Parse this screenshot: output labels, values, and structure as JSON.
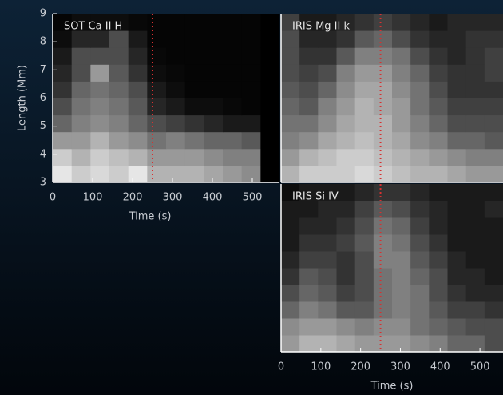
{
  "chart_data": [
    {
      "type": "heatmap",
      "title": "SOT Ca II H",
      "x_label": "Time (s)",
      "y_label": "Length (Mm)",
      "xlim": [
        0,
        568
      ],
      "xticks": [
        0,
        100,
        200,
        300,
        400,
        500
      ],
      "ylim": [
        3,
        9
      ],
      "yticks": [
        3,
        4,
        5,
        6,
        7,
        8,
        9
      ],
      "colormap": "gray",
      "vline": {
        "value": 250,
        "color": "#d83030"
      },
      "z": [
        [
          0.9,
          0.8,
          0.85,
          0.8,
          0.9,
          0.7,
          0.7,
          0.7,
          0.65,
          0.6,
          0.55,
          0
        ],
        [
          0.8,
          0.7,
          0.8,
          0.75,
          0.7,
          0.6,
          0.6,
          0.6,
          0.55,
          0.5,
          0.5,
          0
        ],
        [
          0.6,
          0.6,
          0.7,
          0.6,
          0.55,
          0.45,
          0.5,
          0.45,
          0.4,
          0.4,
          0.35,
          0
        ],
        [
          0.4,
          0.5,
          0.55,
          0.5,
          0.4,
          0.3,
          0.25,
          0.2,
          0.15,
          0.1,
          0.1,
          0
        ],
        [
          0.3,
          0.45,
          0.5,
          0.45,
          0.35,
          0.15,
          0.1,
          0.05,
          0.05,
          0.03,
          0.02,
          0
        ],
        [
          0.2,
          0.4,
          0.45,
          0.4,
          0.3,
          0.1,
          0.05,
          0.02,
          0.02,
          0.02,
          0.02,
          0
        ],
        [
          0.15,
          0.3,
          0.6,
          0.35,
          0.2,
          0.05,
          0.03,
          0.02,
          0.02,
          0.02,
          0.02,
          0
        ],
        [
          0.1,
          0.3,
          0.3,
          0.3,
          0.15,
          0.03,
          0.02,
          0.02,
          0.02,
          0.02,
          0.02,
          0
        ],
        [
          0.05,
          0.15,
          0.15,
          0.3,
          0.1,
          0.02,
          0.02,
          0.02,
          0.02,
          0.02,
          0.02,
          0
        ],
        [
          0.02,
          0.05,
          0.05,
          0.05,
          0.03,
          0.02,
          0.02,
          0.02,
          0.02,
          0.02,
          0.02,
          0
        ]
      ]
    },
    {
      "type": "heatmap",
      "title": "IRIS Mg II k",
      "xlim": [
        0,
        558
      ],
      "ylim": [
        3,
        9
      ],
      "colormap": "gray",
      "vline": {
        "value": 250,
        "color": "#d83030"
      },
      "z": [
        [
          0.7,
          0.8,
          0.8,
          0.8,
          0.85,
          0.8,
          0.75,
          0.7,
          0.7,
          0.65,
          0.6,
          0.6
        ],
        [
          0.6,
          0.7,
          0.75,
          0.8,
          0.8,
          0.75,
          0.7,
          0.65,
          0.6,
          0.55,
          0.5,
          0.5
        ],
        [
          0.5,
          0.55,
          0.65,
          0.7,
          0.75,
          0.7,
          0.65,
          0.55,
          0.5,
          0.4,
          0.4,
          0.35
        ],
        [
          0.45,
          0.45,
          0.55,
          0.65,
          0.7,
          0.7,
          0.6,
          0.5,
          0.4,
          0.3,
          0.3,
          0.3
        ],
        [
          0.4,
          0.35,
          0.5,
          0.6,
          0.7,
          0.65,
          0.6,
          0.45,
          0.35,
          0.25,
          0.25,
          0.25
        ],
        [
          0.35,
          0.3,
          0.4,
          0.55,
          0.65,
          0.65,
          0.55,
          0.45,
          0.3,
          0.2,
          0.2,
          0.2
        ],
        [
          0.3,
          0.25,
          0.3,
          0.5,
          0.6,
          0.6,
          0.5,
          0.4,
          0.25,
          0.2,
          0.2,
          0.25
        ],
        [
          0.3,
          0.2,
          0.2,
          0.35,
          0.5,
          0.5,
          0.45,
          0.3,
          0.2,
          0.15,
          0.2,
          0.25
        ],
        [
          0.3,
          0.15,
          0.15,
          0.2,
          0.35,
          0.4,
          0.3,
          0.2,
          0.15,
          0.15,
          0.2,
          0.2
        ],
        [
          0.25,
          0.1,
          0.1,
          0.15,
          0.2,
          0.25,
          0.2,
          0.15,
          0.1,
          0.15,
          0.15,
          0.15
        ]
      ]
    },
    {
      "type": "heatmap",
      "title": "IRIS Si IV",
      "x_label": "Time (s)",
      "xlim": [
        0,
        558
      ],
      "xticks": [
        0,
        100,
        200,
        300,
        400,
        500
      ],
      "ylim": [
        3,
        9
      ],
      "colormap": "gray",
      "vline": {
        "value": 250,
        "color": "#d83030"
      },
      "z": [
        [
          0.6,
          0.7,
          0.7,
          0.65,
          0.6,
          0.6,
          0.6,
          0.55,
          0.5,
          0.4,
          0.4,
          0.3
        ],
        [
          0.55,
          0.6,
          0.6,
          0.55,
          0.5,
          0.55,
          0.55,
          0.45,
          0.4,
          0.35,
          0.3,
          0.3
        ],
        [
          0.4,
          0.5,
          0.45,
          0.35,
          0.35,
          0.45,
          0.5,
          0.45,
          0.35,
          0.25,
          0.25,
          0.2
        ],
        [
          0.3,
          0.4,
          0.35,
          0.25,
          0.3,
          0.45,
          0.5,
          0.45,
          0.3,
          0.2,
          0.15,
          0.15
        ],
        [
          0.2,
          0.35,
          0.3,
          0.2,
          0.3,
          0.45,
          0.5,
          0.4,
          0.3,
          0.15,
          0.15,
          0.1
        ],
        [
          0.15,
          0.25,
          0.25,
          0.2,
          0.3,
          0.5,
          0.5,
          0.35,
          0.25,
          0.15,
          0.1,
          0.1
        ],
        [
          0.1,
          0.2,
          0.2,
          0.25,
          0.35,
          0.5,
          0.45,
          0.3,
          0.2,
          0.1,
          0.1,
          0.1
        ],
        [
          0.1,
          0.15,
          0.15,
          0.2,
          0.3,
          0.45,
          0.4,
          0.25,
          0.15,
          0.1,
          0.1,
          0.1
        ],
        [
          0.1,
          0.1,
          0.15,
          0.15,
          0.25,
          0.35,
          0.3,
          0.2,
          0.15,
          0.1,
          0.1,
          0.15
        ],
        [
          0.05,
          0.1,
          0.1,
          0.1,
          0.15,
          0.2,
          0.2,
          0.15,
          0.1,
          0.1,
          0.1,
          0.1
        ]
      ]
    }
  ]
}
